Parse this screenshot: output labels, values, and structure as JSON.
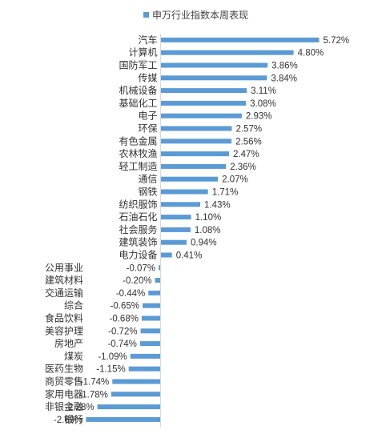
{
  "chart_data": {
    "type": "bar",
    "orientation": "horizontal",
    "legend_position": "top",
    "grid": false,
    "xlim": [
      -2.69,
      5.72
    ],
    "series": [
      {
        "name": "申万行业指数本周表现",
        "color": "#5b9bd5"
      }
    ],
    "categories": [
      "汽车",
      "计算机",
      "国防军工",
      "传媒",
      "机械设备",
      "基础化工",
      "电子",
      "环保",
      "有色金属",
      "农林牧渔",
      "轻工制造",
      "通信",
      "钢铁",
      "纺织服饰",
      "石油石化",
      "社会服务",
      "建筑装饰",
      "电力设备",
      "公用事业",
      "建筑材料",
      "交通运输",
      "综合",
      "食品饮料",
      "美容护理",
      "房地产",
      "煤炭",
      "医药生物",
      "商贸零售",
      "家用电器",
      "非银金融",
      "银行"
    ],
    "values": [
      5.72,
      4.8,
      3.86,
      3.84,
      3.11,
      3.08,
      2.93,
      2.57,
      2.56,
      2.47,
      2.36,
      2.07,
      1.71,
      1.43,
      1.1,
      1.08,
      0.94,
      0.41,
      -0.07,
      -0.2,
      -0.44,
      -0.65,
      -0.68,
      -0.72,
      -0.74,
      -1.09,
      -1.15,
      -1.74,
      -1.78,
      -2.28,
      -2.69
    ],
    "labels": [
      "5.72%",
      "4.80%",
      "3.86%",
      "3.84%",
      "3.11%",
      "3.08%",
      "2.93%",
      "2.57%",
      "2.56%",
      "2.47%",
      "2.36%",
      "2.07%",
      "1.71%",
      "1.43%",
      "1.10%",
      "1.08%",
      "0.94%",
      "0.41%",
      "-0.07%",
      "-0.20%",
      "-0.44%",
      "-0.65%",
      "-0.68%",
      "-0.72%",
      "-0.74%",
      "-1.09%",
      "-1.15%",
      "-1.74%",
      "-1.78%",
      "-2.28%",
      "-2.69%"
    ]
  }
}
